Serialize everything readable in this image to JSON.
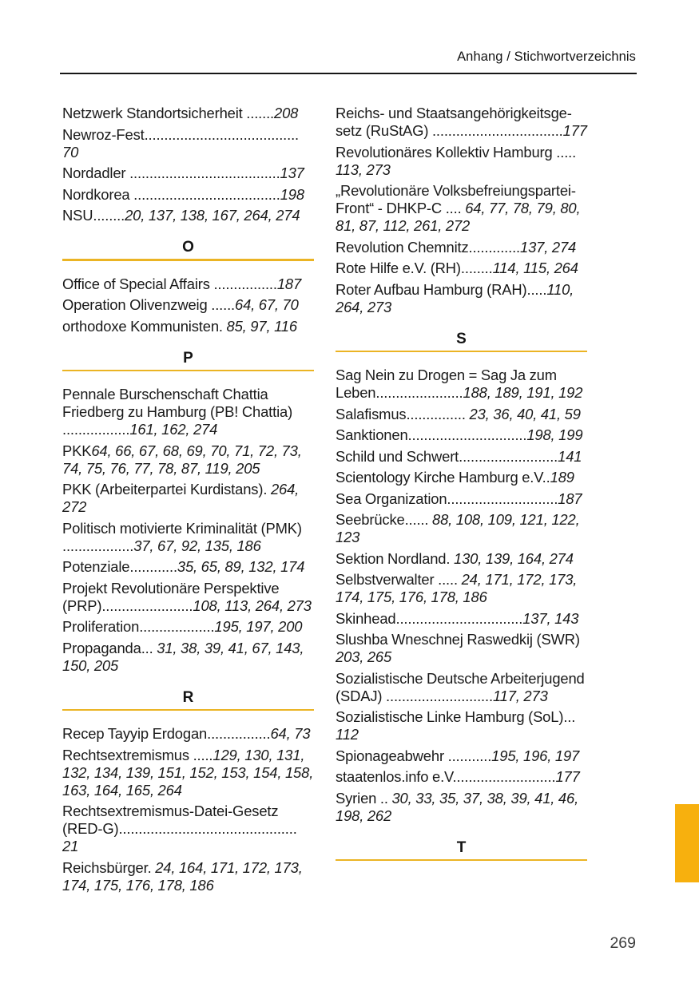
{
  "header": {
    "title": "Anhang / Stichwortverzeichnis"
  },
  "page_number": "269",
  "colors": {
    "accent_rule": "#EBB424",
    "chapter_tab": "#F7B00E",
    "text": "#1a1a1a"
  },
  "columns": [
    {
      "blocks": [
        {
          "type": "entry",
          "term": "Netzwerk Standortsicherheit",
          "leader": " .......",
          "pages": "208"
        },
        {
          "type": "entry",
          "term": "Newroz-Fest",
          "leader": "....................................... ",
          "pages": "70"
        },
        {
          "type": "entry",
          "term": "Nordadler",
          "leader": " ......................................",
          "pages": "137"
        },
        {
          "type": "entry",
          "term": "Nordkorea",
          "leader": " .....................................",
          "pages": "198"
        },
        {
          "type": "entry",
          "term": "NSU",
          "leader": "........",
          "pages": "20, 137, 138, 167, 264, 274"
        },
        {
          "type": "section",
          "letter": "O"
        },
        {
          "type": "entry",
          "term": "Office of Special Affairs",
          "leader": " ................",
          "pages": "187"
        },
        {
          "type": "entry",
          "term": "Operation Olivenzweig",
          "leader": " ......",
          "pages": "64, 67, 70"
        },
        {
          "type": "entry",
          "term": "orthodoxe Kommunisten",
          "leader": ". ",
          "pages": "85, 97, 116"
        },
        {
          "type": "section",
          "letter": "P"
        },
        {
          "type": "entry",
          "term": "Pennale Burschenschaft Chattia Friedberg zu Hamburg (PB! Chattia)",
          "leader": " .................",
          "pages": "161, 162, 274"
        },
        {
          "type": "entry",
          "term": "PKK",
          "leader": "",
          "pages": "64, 66, 67, 68, 69, 70, 71, 72, 73, 74, 75, 76, 77, 78, 87, 119, 205"
        },
        {
          "type": "entry",
          "term": "PKK (Arbeiterpartei Kurdistans)",
          "leader": ". ",
          "pages": "264, 272"
        },
        {
          "type": "entry",
          "term": "Politisch motivierte Kriminalität (PMK)",
          "leader": " ..................",
          "pages": "37, 67, 92, 135, 186"
        },
        {
          "type": "entry",
          "term": "Potenziale",
          "leader": "............",
          "pages": "35, 65, 89, 132, 174"
        },
        {
          "type": "entry",
          "term": "Projekt Revolutionäre Perspektive (PRP)",
          "leader": ".......................",
          "pages": "108, 113, 264, 273"
        },
        {
          "type": "entry",
          "term": "Proliferation",
          "leader": "...................",
          "pages": "195, 197, 200"
        },
        {
          "type": "entry",
          "term": "Propaganda",
          "leader": "... ",
          "pages": "31, 38, 39, 41, 67, 143, 150, 205"
        },
        {
          "type": "section",
          "letter": "R"
        },
        {
          "type": "entry",
          "term": "Recep Tayyip Erdogan",
          "leader": "................",
          "pages": "64, 73"
        },
        {
          "type": "entry",
          "term": "Rechtsextremismus",
          "leader": " .....",
          "pages": "129, 130, 131, 132, 134, 139, 151, 152, 153, 154, 158, 163, 164, 165, 264"
        },
        {
          "type": "entry",
          "term": "Rechtsextremismus-Datei-Gesetz (RED-G)",
          "leader": "............................................. ",
          "pages": "21"
        },
        {
          "type": "entry",
          "term": "Reichsbürger",
          "leader": ". ",
          "pages": "24, 164, 171, 172, 173, 174, 175, 176, 178, 186"
        }
      ]
    },
    {
      "blocks": [
        {
          "type": "entry",
          "term": "Reichs- und Staatsangehörigkeitsge­setz (RuStAG)",
          "leader": " .................................",
          "pages": "177"
        },
        {
          "type": "entry",
          "term": "Revolutionäres Kollektiv Hamburg",
          "leader": " ..... ",
          "pages": "113, 273"
        },
        {
          "type": "entry",
          "term": "„Revolutionäre Volksbefreiungspar­tei-Front“ - DHKP-C",
          "leader": " .... ",
          "pages": "64, 77, 78, 79, 80, 81, 87, 112, 261, 272"
        },
        {
          "type": "entry",
          "term": "Revolution Chemnitz",
          "leader": ".............",
          "pages": "137, 274"
        },
        {
          "type": "entry",
          "term": "Rote Hilfe e.V. (RH)",
          "leader": "........",
          "pages": "114, 115, 264"
        },
        {
          "type": "entry",
          "term": "Roter Aufbau Hamburg (RAH)",
          "leader": ".....",
          "pages": "110, 264, 273"
        },
        {
          "type": "section",
          "letter": "S"
        },
        {
          "type": "entry",
          "term": "Sag Nein zu Drogen = Sag Ja zum Leben",
          "leader": "......................",
          "pages": "188, 189, 191, 192"
        },
        {
          "type": "entry",
          "term": "Salafismus",
          "leader": "............... ",
          "pages": "23, 36, 40, 41, 59"
        },
        {
          "type": "entry",
          "term": "Sanktionen",
          "leader": "..............................",
          "pages": "198, 199"
        },
        {
          "type": "entry",
          "term": "Schild und Schwert",
          "leader": ".........................",
          "pages": "141"
        },
        {
          "type": "entry",
          "term": "Scientology Kirche Hamburg e.V.",
          "leader": ".",
          "pages": "189"
        },
        {
          "type": "entry",
          "term": "Sea Organization",
          "leader": "............................",
          "pages": "187"
        },
        {
          "type": "entry",
          "term": "Seebrücke",
          "leader": "...... ",
          "pages": "88, 108, 109, 121, 122, 123"
        },
        {
          "type": "entry",
          "term": "Sektion Nordland",
          "leader": ". ",
          "pages": "130, 139, 164, 274"
        },
        {
          "type": "entry",
          "term": "Selbstverwalter",
          "leader": " ..... ",
          "pages": "24, 171, 172, 173, 174, 175, 176, 178, 186"
        },
        {
          "type": "entry",
          "term": "Skinhead",
          "leader": "................................",
          "pages": "137, 143"
        },
        {
          "type": "entry",
          "term": "Slushba Wneschnej Raswedkij (SWR) ",
          "leader": "",
          "pages": "203, 265"
        },
        {
          "type": "entry",
          "term": "Sozialistische Deutsche Arbeiterju­gend (SDAJ)",
          "leader": " ...........................",
          "pages": "117, 273"
        },
        {
          "type": "entry",
          "term": "Sozialistische Linke Hamburg (SoL)",
          "leader": "... ",
          "pages": "112"
        },
        {
          "type": "entry",
          "term": "Spionageabwehr",
          "leader": " ...........",
          "pages": "195, 196, 197"
        },
        {
          "type": "entry",
          "term": "staatenlos.info e.V",
          "leader": "..........................",
          "pages": "177"
        },
        {
          "type": "entry",
          "term": "Syrien",
          "leader": " .. ",
          "pages": "30, 33, 35, 37, 38, 39, 41, 46, 198, 262"
        },
        {
          "type": "section",
          "letter": "T"
        }
      ]
    }
  ]
}
